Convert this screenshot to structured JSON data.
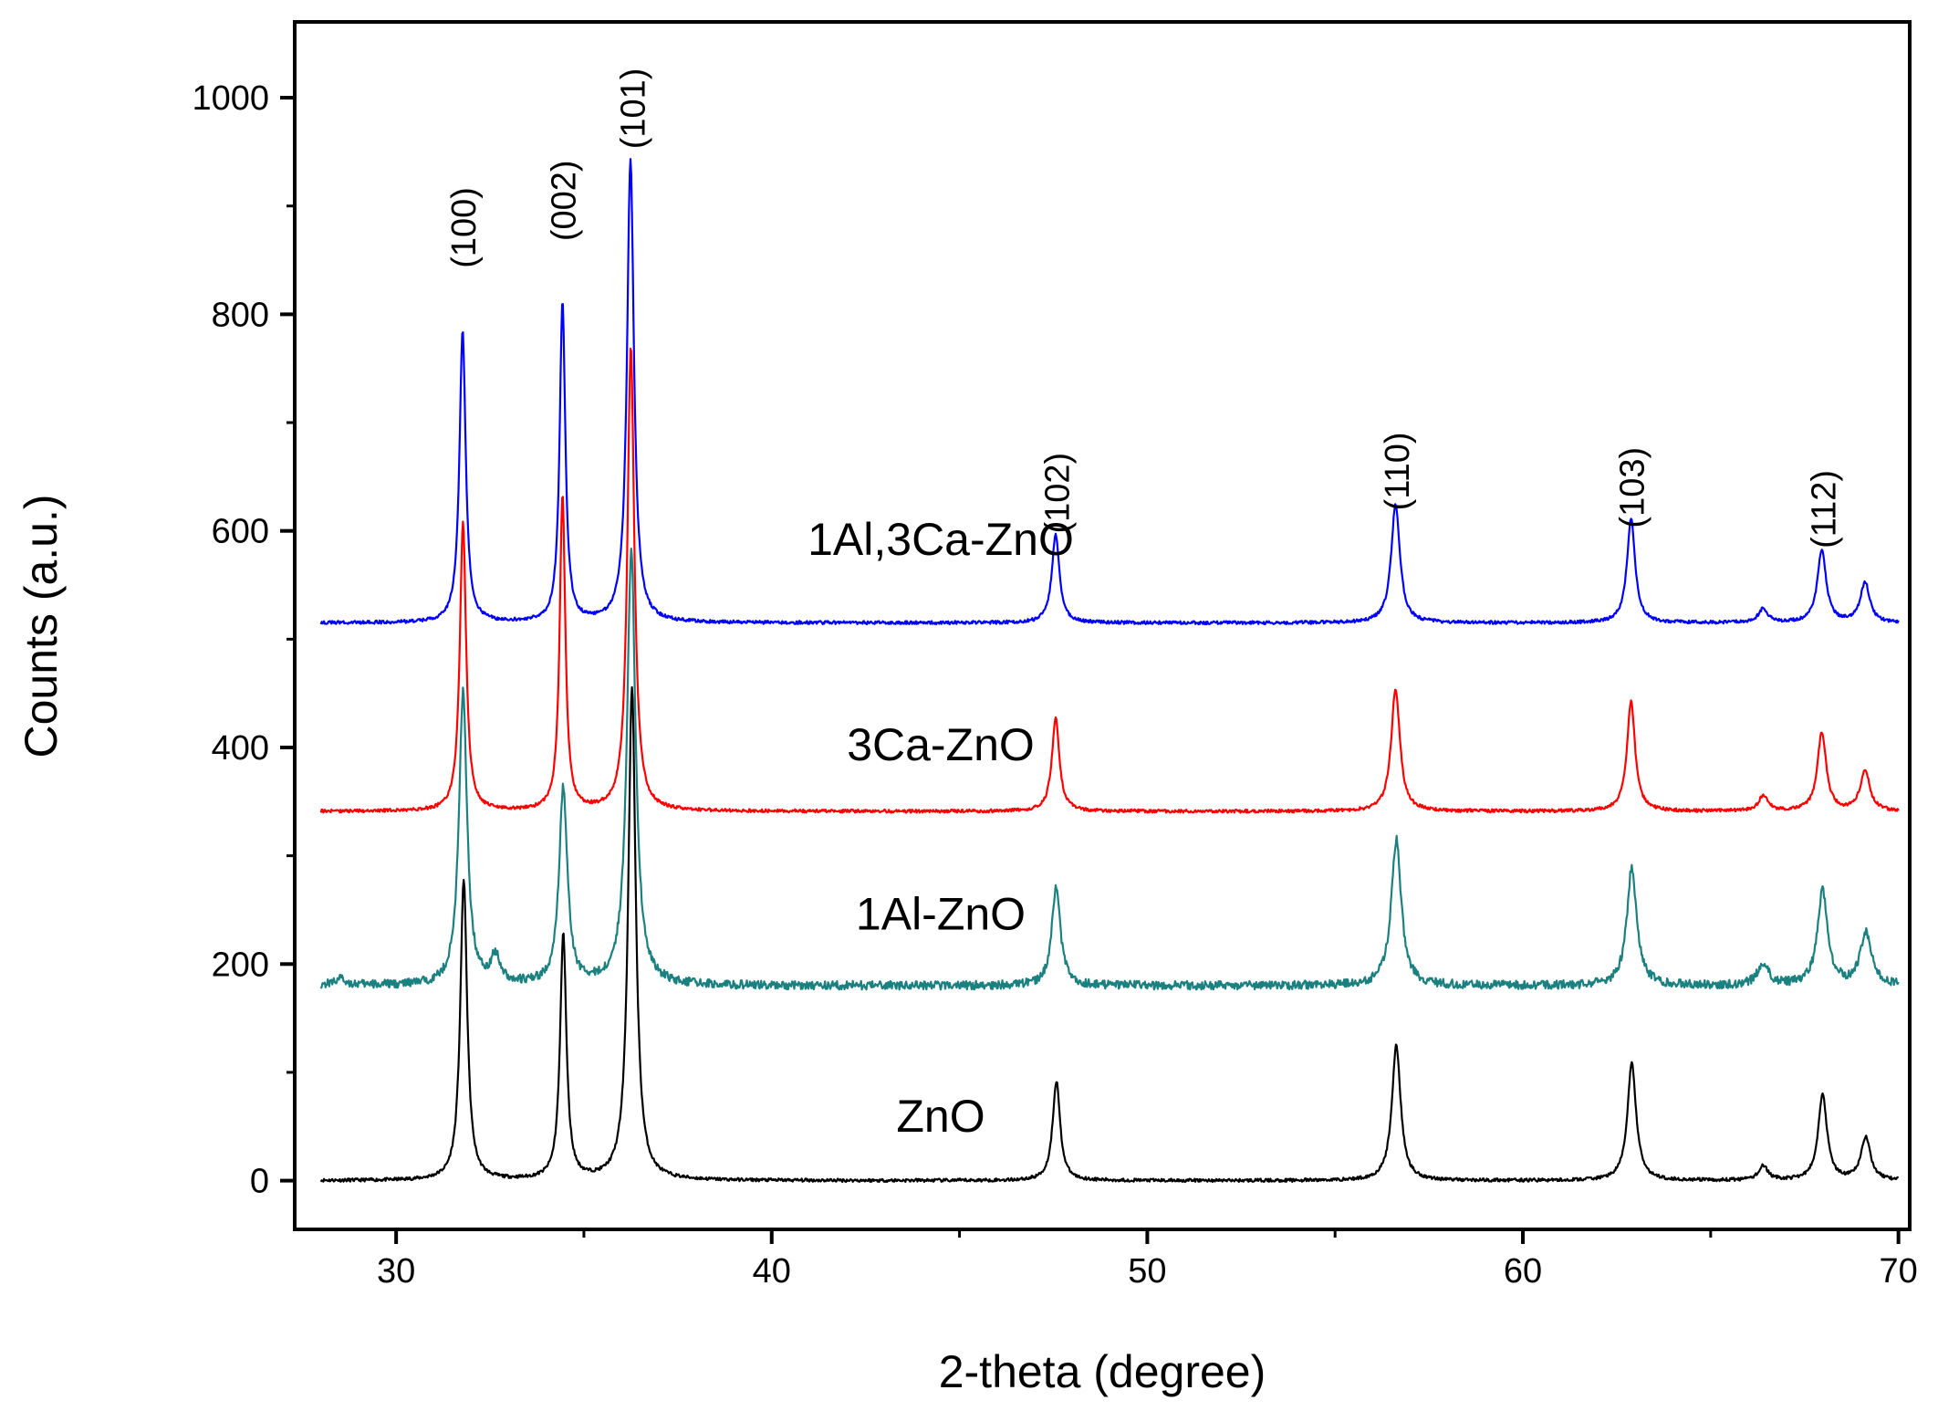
{
  "chart_data": {
    "type": "line",
    "title": "",
    "xlabel": "2-theta (degree)",
    "ylabel": "Counts (a.u.)",
    "xlim": [
      27.3,
      70.3
    ],
    "ylim": [
      -45,
      1070
    ],
    "x_ticks": [
      30,
      40,
      50,
      60,
      70
    ],
    "x_tick_labels": [
      "30",
      "40",
      "50",
      "60",
      "70"
    ],
    "x_minor_ticks": [
      35,
      45,
      55,
      65
    ],
    "y_ticks": [
      0,
      200,
      400,
      600,
      800,
      1000
    ],
    "y_tick_labels": [
      "0",
      "200",
      "400",
      "600",
      "800",
      "1000"
    ],
    "y_minor_ticks": [
      100,
      300,
      500,
      700,
      900
    ],
    "grid": false,
    "legend": "inline labels",
    "series": [
      {
        "name": "ZnO",
        "color": "#000000",
        "baseline": 0,
        "noise": 1.5,
        "peaks": [
          [
            31.8,
            278,
            0.11
          ],
          [
            34.45,
            228,
            0.1
          ],
          [
            36.28,
            455,
            0.12
          ],
          [
            47.58,
            92,
            0.12
          ],
          [
            56.63,
            125,
            0.14
          ],
          [
            62.9,
            108,
            0.14
          ],
          [
            66.4,
            13,
            0.15
          ],
          [
            67.98,
            80,
            0.14
          ],
          [
            69.13,
            40,
            0.15
          ]
        ]
      },
      {
        "name": "1Al-ZnO",
        "color": "#1a8080",
        "baseline": 180,
        "noise": 4,
        "peaks": [
          [
            31.78,
            450,
            0.13
          ],
          [
            34.45,
            362,
            0.13
          ],
          [
            36.26,
            580,
            0.14
          ],
          [
            32.65,
            205,
            0.15
          ],
          [
            28.5,
            186,
            0.2
          ],
          [
            47.57,
            270,
            0.14
          ],
          [
            56.63,
            315,
            0.16
          ],
          [
            62.9,
            288,
            0.16
          ],
          [
            66.4,
            200,
            0.18
          ],
          [
            67.98,
            268,
            0.16
          ],
          [
            69.13,
            228,
            0.18
          ]
        ]
      },
      {
        "name": "3Ca-ZnO",
        "color": "#ff0000",
        "baseline": 341,
        "noise": 1.5,
        "peaks": [
          [
            31.78,
            608,
            0.1
          ],
          [
            34.43,
            633,
            0.09
          ],
          [
            36.25,
            770,
            0.11
          ],
          [
            47.56,
            427,
            0.12
          ],
          [
            56.61,
            454,
            0.14
          ],
          [
            62.88,
            442,
            0.13
          ],
          [
            66.4,
            355,
            0.15
          ],
          [
            67.96,
            414,
            0.14
          ],
          [
            69.11,
            379,
            0.15
          ]
        ]
      },
      {
        "name": "1Al,3Ca-ZnO",
        "color": "#0000ff",
        "baseline": 515,
        "noise": 1.5,
        "peaks": [
          [
            31.77,
            784,
            0.1
          ],
          [
            34.43,
            812,
            0.09
          ],
          [
            36.24,
            943,
            0.11
          ],
          [
            47.56,
            597,
            0.12
          ],
          [
            56.61,
            624,
            0.14
          ],
          [
            62.88,
            611,
            0.13
          ],
          [
            66.4,
            528,
            0.15
          ],
          [
            67.96,
            582,
            0.14
          ],
          [
            69.11,
            552,
            0.15
          ]
        ]
      }
    ],
    "series_labels": [
      {
        "text": "1Al,3Ca-ZnO",
        "x": 44.5,
        "y": 578
      },
      {
        "text": "3Ca-ZnO",
        "x": 44.5,
        "y": 388
      },
      {
        "text": "1Al-ZnO",
        "x": 44.5,
        "y": 232
      },
      {
        "text": "ZnO",
        "x": 44.5,
        "y": 45
      }
    ],
    "annotations": [
      {
        "text": "(100)",
        "x": 31.8,
        "y": 880
      },
      {
        "text": "(002)",
        "x": 34.45,
        "y": 905
      },
      {
        "text": "(101)",
        "x": 36.3,
        "y": 990
      },
      {
        "text": "(102)",
        "x": 47.6,
        "y": 635
      },
      {
        "text": "(110)",
        "x": 56.65,
        "y": 655
      },
      {
        "text": "(103)",
        "x": 62.9,
        "y": 640
      },
      {
        "text": "(112)",
        "x": 68.0,
        "y": 620
      }
    ]
  }
}
